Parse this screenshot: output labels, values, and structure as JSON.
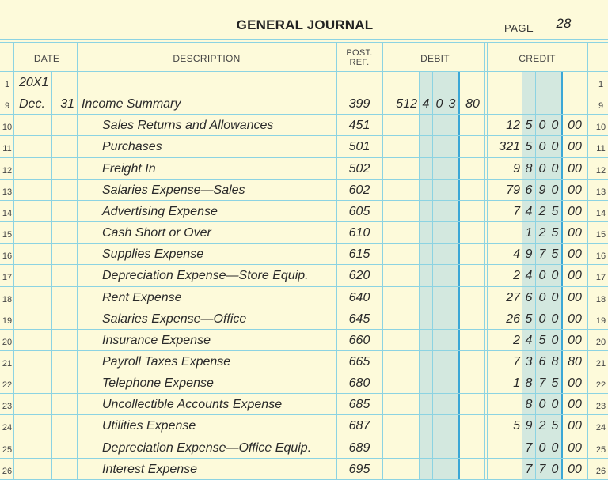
{
  "header": {
    "title": "GENERAL JOURNAL",
    "page_label": "PAGE",
    "page_number": "28"
  },
  "columns": {
    "date": "DATE",
    "description": "DESCRIPTION",
    "post_ref_line1": "POST.",
    "post_ref_line2": "REF.",
    "debit": "DEBIT",
    "credit": "CREDIT"
  },
  "colors": {
    "paper": "#FDFADA",
    "grid_line": "#8CD3E2",
    "thick_line": "#3BA7D6",
    "shade": "#D3E8DF"
  },
  "rows": [
    {
      "line": "1",
      "year": "20X1",
      "month": "",
      "day": "",
      "description": "",
      "indent": false,
      "post_ref": "",
      "debit": {
        "hi": "",
        "d1": "",
        "d2": "",
        "d3": "",
        "cents": ""
      },
      "credit": {
        "hi": "",
        "d1": "",
        "d2": "",
        "d3": "",
        "cents": ""
      }
    },
    {
      "line": "9",
      "year": "",
      "month": "Dec.",
      "day": "31",
      "description": "Income Summary",
      "indent": false,
      "post_ref": "399",
      "debit": {
        "hi": "512",
        "d1": "4",
        "d2": "0",
        "d3": "3",
        "cents": "80"
      },
      "credit": {
        "hi": "",
        "d1": "",
        "d2": "",
        "d3": "",
        "cents": ""
      }
    },
    {
      "line": "10",
      "year": "",
      "month": "",
      "day": "",
      "description": "Sales Returns and Allowances",
      "indent": true,
      "post_ref": "451",
      "debit": {
        "hi": "",
        "d1": "",
        "d2": "",
        "d3": "",
        "cents": ""
      },
      "credit": {
        "hi": "12",
        "d1": "5",
        "d2": "0",
        "d3": "0",
        "cents": "00"
      }
    },
    {
      "line": "11",
      "year": "",
      "month": "",
      "day": "",
      "description": "Purchases",
      "indent": true,
      "post_ref": "501",
      "debit": {
        "hi": "",
        "d1": "",
        "d2": "",
        "d3": "",
        "cents": ""
      },
      "credit": {
        "hi": "321",
        "d1": "5",
        "d2": "0",
        "d3": "0",
        "cents": "00"
      }
    },
    {
      "line": "12",
      "year": "",
      "month": "",
      "day": "",
      "description": "Freight In",
      "indent": true,
      "post_ref": "502",
      "debit": {
        "hi": "",
        "d1": "",
        "d2": "",
        "d3": "",
        "cents": ""
      },
      "credit": {
        "hi": "9",
        "d1": "8",
        "d2": "0",
        "d3": "0",
        "cents": "00"
      }
    },
    {
      "line": "13",
      "year": "",
      "month": "",
      "day": "",
      "description": "Salaries Expense—Sales",
      "indent": true,
      "post_ref": "602",
      "debit": {
        "hi": "",
        "d1": "",
        "d2": "",
        "d3": "",
        "cents": ""
      },
      "credit": {
        "hi": "79",
        "d1": "6",
        "d2": "9",
        "d3": "0",
        "cents": "00"
      }
    },
    {
      "line": "14",
      "year": "",
      "month": "",
      "day": "",
      "description": "Advertising Expense",
      "indent": true,
      "post_ref": "605",
      "debit": {
        "hi": "",
        "d1": "",
        "d2": "",
        "d3": "",
        "cents": ""
      },
      "credit": {
        "hi": "7",
        "d1": "4",
        "d2": "2",
        "d3": "5",
        "cents": "00"
      }
    },
    {
      "line": "15",
      "year": "",
      "month": "",
      "day": "",
      "description": "Cash Short or Over",
      "indent": true,
      "post_ref": "610",
      "debit": {
        "hi": "",
        "d1": "",
        "d2": "",
        "d3": "",
        "cents": ""
      },
      "credit": {
        "hi": "",
        "d1": "1",
        "d2": "2",
        "d3": "5",
        "cents": "00"
      }
    },
    {
      "line": "16",
      "year": "",
      "month": "",
      "day": "",
      "description": "Supplies Expense",
      "indent": true,
      "post_ref": "615",
      "debit": {
        "hi": "",
        "d1": "",
        "d2": "",
        "d3": "",
        "cents": ""
      },
      "credit": {
        "hi": "4",
        "d1": "9",
        "d2": "7",
        "d3": "5",
        "cents": "00"
      }
    },
    {
      "line": "17",
      "year": "",
      "month": "",
      "day": "",
      "description": "Depreciation Expense—Store Equip.",
      "indent": true,
      "post_ref": "620",
      "debit": {
        "hi": "",
        "d1": "",
        "d2": "",
        "d3": "",
        "cents": ""
      },
      "credit": {
        "hi": "2",
        "d1": "4",
        "d2": "0",
        "d3": "0",
        "cents": "00"
      }
    },
    {
      "line": "18",
      "year": "",
      "month": "",
      "day": "",
      "description": "Rent Expense",
      "indent": true,
      "post_ref": "640",
      "debit": {
        "hi": "",
        "d1": "",
        "d2": "",
        "d3": "",
        "cents": ""
      },
      "credit": {
        "hi": "27",
        "d1": "6",
        "d2": "0",
        "d3": "0",
        "cents": "00"
      }
    },
    {
      "line": "19",
      "year": "",
      "month": "",
      "day": "",
      "description": "Salaries Expense—Office",
      "indent": true,
      "post_ref": "645",
      "debit": {
        "hi": "",
        "d1": "",
        "d2": "",
        "d3": "",
        "cents": ""
      },
      "credit": {
        "hi": "26",
        "d1": "5",
        "d2": "0",
        "d3": "0",
        "cents": "00"
      }
    },
    {
      "line": "20",
      "year": "",
      "month": "",
      "day": "",
      "description": "Insurance Expense",
      "indent": true,
      "post_ref": "660",
      "debit": {
        "hi": "",
        "d1": "",
        "d2": "",
        "d3": "",
        "cents": ""
      },
      "credit": {
        "hi": "2",
        "d1": "4",
        "d2": "5",
        "d3": "0",
        "cents": "00"
      }
    },
    {
      "line": "21",
      "year": "",
      "month": "",
      "day": "",
      "description": "Payroll Taxes Expense",
      "indent": true,
      "post_ref": "665",
      "debit": {
        "hi": "",
        "d1": "",
        "d2": "",
        "d3": "",
        "cents": ""
      },
      "credit": {
        "hi": "7",
        "d1": "3",
        "d2": "6",
        "d3": "8",
        "cents": "80"
      }
    },
    {
      "line": "22",
      "year": "",
      "month": "",
      "day": "",
      "description": "Telephone Expense",
      "indent": true,
      "post_ref": "680",
      "debit": {
        "hi": "",
        "d1": "",
        "d2": "",
        "d3": "",
        "cents": ""
      },
      "credit": {
        "hi": "1",
        "d1": "8",
        "d2": "7",
        "d3": "5",
        "cents": "00"
      }
    },
    {
      "line": "23",
      "year": "",
      "month": "",
      "day": "",
      "description": "Uncollectible Accounts Expense",
      "indent": true,
      "post_ref": "685",
      "debit": {
        "hi": "",
        "d1": "",
        "d2": "",
        "d3": "",
        "cents": ""
      },
      "credit": {
        "hi": "",
        "d1": "8",
        "d2": "0",
        "d3": "0",
        "cents": "00"
      }
    },
    {
      "line": "24",
      "year": "",
      "month": "",
      "day": "",
      "description": "Utilities Expense",
      "indent": true,
      "post_ref": "687",
      "debit": {
        "hi": "",
        "d1": "",
        "d2": "",
        "d3": "",
        "cents": ""
      },
      "credit": {
        "hi": "5",
        "d1": "9",
        "d2": "2",
        "d3": "5",
        "cents": "00"
      }
    },
    {
      "line": "25",
      "year": "",
      "month": "",
      "day": "",
      "description": "Depreciation Expense—Office Equip.",
      "indent": true,
      "post_ref": "689",
      "debit": {
        "hi": "",
        "d1": "",
        "d2": "",
        "d3": "",
        "cents": ""
      },
      "credit": {
        "hi": "",
        "d1": "7",
        "d2": "0",
        "d3": "0",
        "cents": "00"
      }
    },
    {
      "line": "26",
      "year": "",
      "month": "",
      "day": "",
      "description": "Interest Expense",
      "indent": true,
      "post_ref": "695",
      "debit": {
        "hi": "",
        "d1": "",
        "d2": "",
        "d3": "",
        "cents": ""
      },
      "credit": {
        "hi": "",
        "d1": "7",
        "d2": "7",
        "d3": "0",
        "cents": "00"
      }
    }
  ]
}
